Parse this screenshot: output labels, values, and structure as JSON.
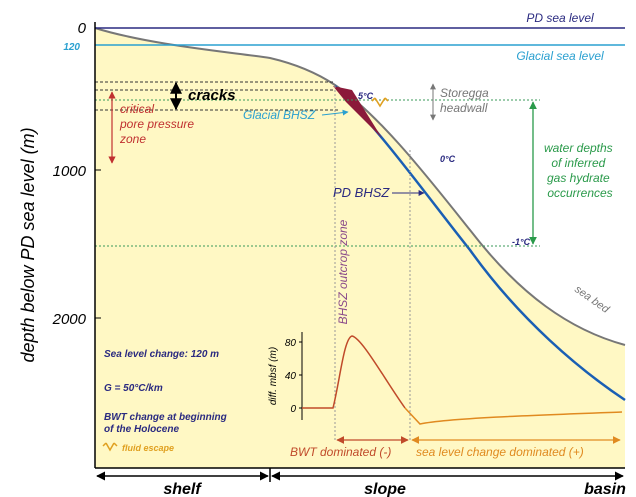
{
  "diagram": {
    "sea_levels": {
      "pd": "PD sea level",
      "glacial": "Glacial sea level"
    },
    "axis": {
      "label": "depth below PD sea level (m)",
      "ticks": [
        "0",
        "1000",
        "2000"
      ],
      "glacial_offset": "120"
    },
    "annotations": {
      "cracks": "cracks",
      "critical_zone": [
        "critical",
        "pore pressure",
        "zone"
      ],
      "glacial_bhsz": "Glacial BHSZ",
      "temp_5": "5°C",
      "storegga": [
        "Storegga",
        "headwall"
      ],
      "temp_0": "0°C",
      "hydrate": [
        "water depths",
        "of inferred",
        "gas hydrate",
        "occurrences"
      ],
      "pd_bhsz": "PD BHSZ",
      "temp_m1": "-1°C",
      "outcrop": "BHSZ outcrop zone",
      "sea_bed": "sea bed"
    },
    "legend": {
      "sea_level_change": "Sea level change: 120 m",
      "gradient": "G = 50°C/km",
      "bwt": [
        "BWT change at beginning",
        "of the Holocene"
      ],
      "fluid": "fluid escape"
    },
    "inset": {
      "label": "diff. mbsf (m)",
      "ticks": [
        "80",
        "40",
        "0"
      ]
    },
    "regimes": {
      "bwt": "BWT dominated (-)",
      "sea_level": "sea level change dominated (+)"
    },
    "zones": [
      "shelf",
      "slope",
      "basin"
    ]
  }
}
